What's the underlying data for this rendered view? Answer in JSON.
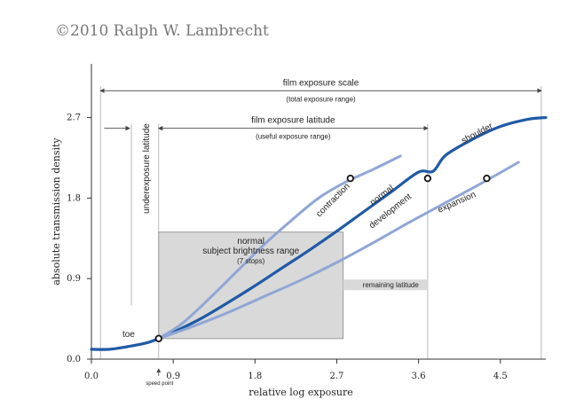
{
  "copyright": "©2010  Ralph W. Lambrecht",
  "chart_data": {
    "type": "line",
    "title": "",
    "xlabel": "relative log exposure",
    "ylabel": "absolute transmission density",
    "xlim": [
      0.0,
      5.0
    ],
    "ylim": [
      0.0,
      3.3
    ],
    "x_ticks": [
      0.0,
      0.9,
      1.8,
      2.7,
      3.6,
      4.5
    ],
    "x_tick_labels": [
      "0.0",
      "0.9",
      "1.8",
      "2.7",
      "3.6",
      "4.5"
    ],
    "y_ticks": [
      0.0,
      0.9,
      1.8,
      2.7
    ],
    "y_tick_labels": [
      "0.0",
      "0.9",
      "1.8",
      "2.7"
    ],
    "series": [
      {
        "name": "normal development",
        "color": "#1f5aa6",
        "x": [
          0.0,
          0.2,
          0.4,
          0.6,
          0.74,
          0.9,
          1.2,
          1.5,
          1.8,
          2.1,
          2.4,
          2.7,
          3.0,
          3.3,
          3.6,
          3.76,
          3.9,
          4.2,
          4.5,
          4.8,
          5.0
        ],
        "y": [
          0.11,
          0.11,
          0.14,
          0.18,
          0.23,
          0.3,
          0.45,
          0.63,
          0.82,
          1.02,
          1.22,
          1.43,
          1.65,
          1.87,
          2.09,
          2.1,
          2.28,
          2.46,
          2.6,
          2.68,
          2.7
        ]
      },
      {
        "name": "contraction",
        "color": "#8fa6d6",
        "x": [
          0.74,
          1.0,
          1.3,
          1.6,
          1.9,
          2.2,
          2.5,
          2.8,
          3.1,
          3.4
        ],
        "y": [
          0.23,
          0.4,
          0.68,
          0.98,
          1.28,
          1.55,
          1.8,
          1.98,
          2.12,
          2.27
        ]
      },
      {
        "name": "expansion",
        "color": "#8fa6d6",
        "x": [
          0.74,
          1.1,
          1.5,
          1.9,
          2.3,
          2.7,
          3.1,
          3.5,
          3.9,
          4.3,
          4.7
        ],
        "y": [
          0.23,
          0.36,
          0.52,
          0.7,
          0.88,
          1.08,
          1.3,
          1.53,
          1.75,
          1.97,
          2.2
        ]
      }
    ],
    "points": [
      {
        "name": "speed point",
        "x": 0.74,
        "y": 0.23
      },
      {
        "name": "contraction highlight",
        "x": 2.85,
        "y": 2.02
      },
      {
        "name": "normal highlight",
        "x": 3.7,
        "y": 2.02
      },
      {
        "name": "expansion highlight",
        "x": 4.35,
        "y": 2.02
      }
    ],
    "subject_range": {
      "x0": 0.74,
      "x1": 2.77,
      "y0": 0.23,
      "y1": 1.42
    },
    "remaining_latitude": {
      "x0": 2.77,
      "x1": 3.7,
      "y": 0.83
    },
    "scale": {
      "x0": 0.1,
      "x1": 4.95,
      "y": 3.0
    },
    "latitude": {
      "x0": 0.74,
      "x1": 3.7,
      "y": 2.58
    },
    "underexposure": {
      "x0": 0.14,
      "x1": 0.74,
      "y": 2.58
    },
    "annotations": {
      "film_exposure_scale": "film exposure scale",
      "total_exposure_range": "(total exposure range)",
      "film_exposure_latitude": "film exposure latitude",
      "useful_exposure_range": "(useful exposure range)",
      "underexposure_latitude": "underexposure latitude",
      "subject_line1": "normal",
      "subject_line2": "subject brightness range",
      "subject_line3": "(7 stops)",
      "remaining_latitude": "remaining latitude",
      "toe": "toe",
      "shoulder": "shoulder",
      "contraction": "contraction",
      "normal": "normal",
      "development": "development",
      "expansion": "expansion",
      "speed_point": "speed point"
    }
  }
}
